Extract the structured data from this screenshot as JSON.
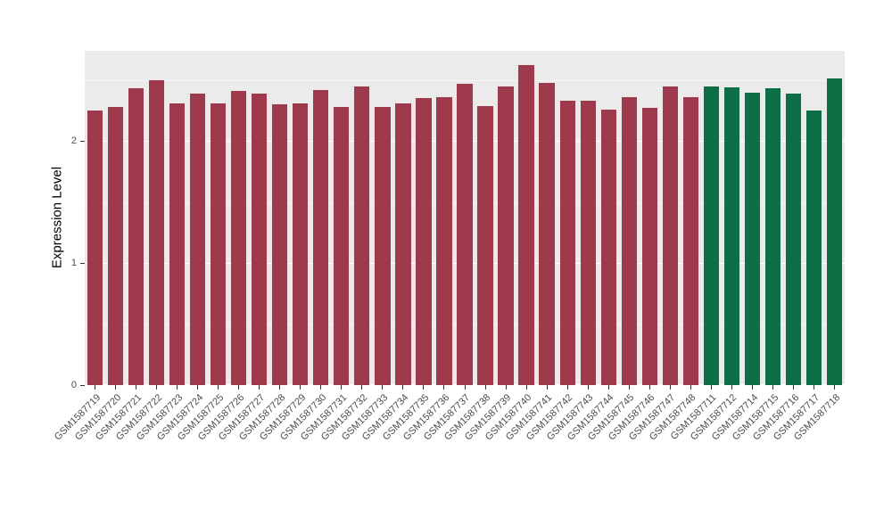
{
  "chart_data": {
    "type": "bar",
    "title": "",
    "xlabel": "",
    "ylabel": "Expression Level",
    "ylim": [
      0,
      2.74
    ],
    "yticks": [
      0,
      1,
      2
    ],
    "yticks_minor": [
      0.5,
      1.5,
      2.5
    ],
    "grid": true,
    "legend": "none",
    "categories": [
      "GSM1587719",
      "GSM1587720",
      "GSM1587721",
      "GSM1587722",
      "GSM1587723",
      "GSM1587724",
      "GSM1587725",
      "GSM1587726",
      "GSM1587727",
      "GSM1587728",
      "GSM1587729",
      "GSM1587730",
      "GSM1587731",
      "GSM1587732",
      "GSM1587733",
      "GSM1587734",
      "GSM1587735",
      "GSM1587736",
      "GSM1587737",
      "GSM1587738",
      "GSM1587739",
      "GSM1587740",
      "GSM1587741",
      "GSM1587742",
      "GSM1587743",
      "GSM1587744",
      "GSM1587745",
      "GSM1587746",
      "GSM1587747",
      "GSM1587748",
      "GSM1587711",
      "GSM1587712",
      "GSM1587714",
      "GSM1587715",
      "GSM1587716",
      "GSM1587717",
      "GSM1587718"
    ],
    "values": [
      2.25,
      2.28,
      2.43,
      2.5,
      2.31,
      2.39,
      2.31,
      2.41,
      2.39,
      2.3,
      2.31,
      2.42,
      2.28,
      2.45,
      2.28,
      2.31,
      2.35,
      2.36,
      2.47,
      2.29,
      2.45,
      2.62,
      2.48,
      2.33,
      2.33,
      2.26,
      2.36,
      2.27,
      2.45,
      2.36,
      2.45,
      2.44,
      2.4,
      2.43,
      2.39,
      2.25,
      2.51
    ],
    "group": [
      0,
      0,
      0,
      0,
      0,
      0,
      0,
      0,
      0,
      0,
      0,
      0,
      0,
      0,
      0,
      0,
      0,
      0,
      0,
      0,
      0,
      0,
      0,
      0,
      0,
      0,
      0,
      0,
      0,
      0,
      1,
      1,
      1,
      1,
      1,
      1,
      1
    ],
    "palette": [
      "#9e3a4c",
      "#0e6e46"
    ],
    "colors": {
      "panel_bg": "#ebebeb",
      "figure_bg": "#ffffff",
      "grid": "#ffffff",
      "axis_text": "#4d4d4d",
      "axis_title": "#000000"
    }
  }
}
